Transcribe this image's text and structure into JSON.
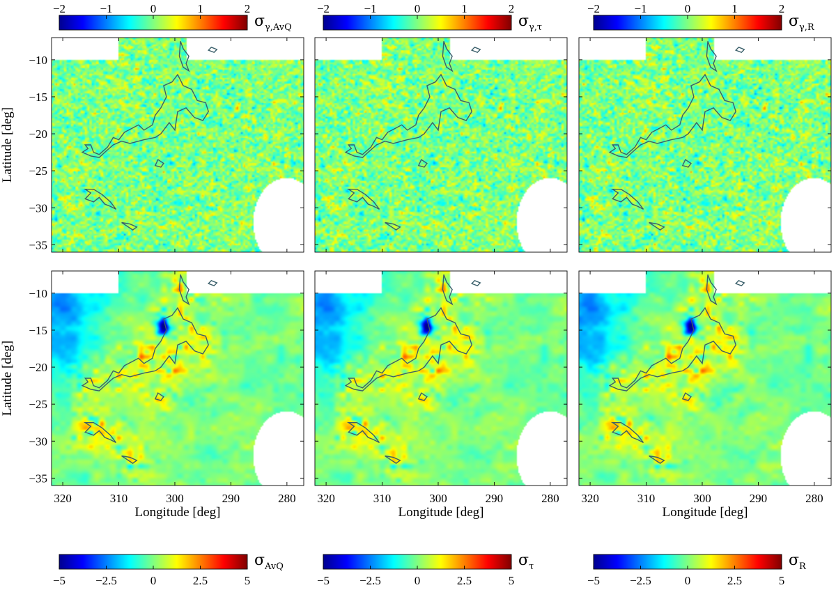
{
  "chart_data": {
    "type": "heatmap",
    "xlabel": "Longitude [deg]",
    "ylabel": "Latitude [deg]",
    "xlim": [
      322,
      277
    ],
    "ylim": [
      -36,
      -7
    ],
    "xticks": [
      320,
      310,
      300,
      290,
      280
    ],
    "yticks": [
      -10,
      -15,
      -20,
      -25,
      -30,
      -35
    ],
    "top_colorbar": {
      "range": [
        -2,
        2
      ],
      "ticks": [
        "−2",
        "−1",
        "0",
        "1",
        "2"
      ]
    },
    "bottom_colorbar": {
      "range": [
        -5,
        5
      ],
      "ticks": [
        "−5",
        "−2.5",
        "0",
        "2.5",
        "5"
      ]
    },
    "colormap": [
      "#00008f",
      "#0000ff",
      "#0080ff",
      "#00ffff",
      "#80ff80",
      "#ffff00",
      "#ff8000",
      "#ff0000",
      "#800000"
    ],
    "contour_color": "#3a5f6a",
    "grid": false,
    "panels": [
      {
        "row": 0,
        "col": 0,
        "sigma": "σ",
        "sub": "γ,AvQ",
        "field": "gradient-statistic",
        "style": "fine"
      },
      {
        "row": 0,
        "col": 1,
        "sigma": "σ",
        "sub": "γ,τ",
        "field": "gradient-statistic",
        "style": "fine"
      },
      {
        "row": 0,
        "col": 2,
        "sigma": "σ",
        "sub": "γ,R",
        "field": "gradient-statistic",
        "style": "fine"
      },
      {
        "row": 1,
        "col": 0,
        "sigma": "σ",
        "sub": "AvQ",
        "field": "map-statistic",
        "style": "smooth"
      },
      {
        "row": 1,
        "col": 1,
        "sigma": "σ",
        "sub": "τ",
        "field": "map-statistic",
        "style": "smooth"
      },
      {
        "row": 1,
        "col": 2,
        "sigma": "σ",
        "sub": "R",
        "field": "map-statistic",
        "style": "smooth"
      }
    ],
    "masked_regions": [
      {
        "shape": "rectangle",
        "lon": [
          322,
          310
        ],
        "lat": [
          -10,
          -7
        ]
      },
      {
        "shape": "rectangle",
        "lon": [
          298,
          277
        ],
        "lat": [
          -10,
          -7
        ]
      },
      {
        "shape": "disk",
        "center": [
          280,
          -32
        ],
        "radius_deg": 6
      }
    ],
    "contours": [
      {
        "name": "main-complex",
        "points": [
          [
            316.5,
            -22.5
          ],
          [
            315.5,
            -22
          ],
          [
            316,
            -21.5
          ],
          [
            315,
            -21.5
          ],
          [
            314.5,
            -22.5
          ],
          [
            313.5,
            -22.8
          ],
          [
            312,
            -21.8
          ],
          [
            311,
            -20.5
          ],
          [
            310,
            -20.8
          ],
          [
            309,
            -19.8
          ],
          [
            307.5,
            -19.2
          ],
          [
            306.5,
            -18.8
          ],
          [
            305.5,
            -19.5
          ],
          [
            304,
            -18.8
          ],
          [
            303.5,
            -17.5
          ],
          [
            302.5,
            -16.5
          ],
          [
            301.5,
            -15
          ],
          [
            302,
            -13.5
          ],
          [
            300.5,
            -13
          ],
          [
            299.5,
            -12
          ],
          [
            298.5,
            -13.5
          ],
          [
            297,
            -14
          ],
          [
            296,
            -15.5
          ],
          [
            294.5,
            -15.8
          ],
          [
            294,
            -17
          ],
          [
            295,
            -18.2
          ],
          [
            296.5,
            -17.8
          ],
          [
            298,
            -16.5
          ],
          [
            299.5,
            -17
          ],
          [
            300,
            -19.5
          ],
          [
            301,
            -18.5
          ],
          [
            302.5,
            -20
          ],
          [
            303.5,
            -20.5
          ],
          [
            305.5,
            -20.8
          ],
          [
            306.5,
            -21
          ],
          [
            308,
            -21.3
          ],
          [
            309.5,
            -21
          ],
          [
            311,
            -21.5
          ],
          [
            312.5,
            -22.5
          ],
          [
            313.5,
            -23.2
          ],
          [
            315,
            -23
          ],
          [
            316.5,
            -22.5
          ]
        ]
      },
      {
        "name": "southern-cloud",
        "points": [
          [
            316,
            -27.5
          ],
          [
            315,
            -28
          ],
          [
            316,
            -28.8
          ],
          [
            314.5,
            -29.2
          ],
          [
            313.5,
            -28.6
          ],
          [
            312.5,
            -29.5
          ],
          [
            311.5,
            -29.8
          ],
          [
            310.5,
            -30.2
          ],
          [
            311.5,
            -29.2
          ],
          [
            313,
            -28.2
          ],
          [
            314.5,
            -27.5
          ],
          [
            316,
            -27.5
          ]
        ]
      },
      {
        "name": "small-southern-clump",
        "points": [
          [
            309.5,
            -32
          ],
          [
            308.5,
            -32.5
          ],
          [
            307.5,
            -33
          ],
          [
            306.8,
            -32.6
          ],
          [
            308,
            -32.2
          ],
          [
            309.5,
            -32
          ]
        ]
      },
      {
        "name": "northern-filament",
        "points": [
          [
            299,
            -7.5
          ],
          [
            298.5,
            -8.5
          ],
          [
            297.5,
            -9.5
          ],
          [
            298,
            -10.5
          ],
          [
            297.5,
            -11.5
          ],
          [
            298.5,
            -11
          ],
          [
            299.2,
            -9.5
          ],
          [
            299,
            -7.5
          ]
        ]
      },
      {
        "name": "small-clump-a",
        "points": [
          [
            303,
            -23.5
          ],
          [
            302,
            -24
          ],
          [
            302.5,
            -24.5
          ],
          [
            303.5,
            -24.3
          ],
          [
            303,
            -23.5
          ]
        ]
      },
      {
        "name": "small-clump-b",
        "points": [
          [
            293.5,
            -8.3
          ],
          [
            292.5,
            -8.6
          ],
          [
            293,
            -9
          ],
          [
            294,
            -8.7
          ],
          [
            293.5,
            -8.3
          ]
        ]
      }
    ]
  }
}
